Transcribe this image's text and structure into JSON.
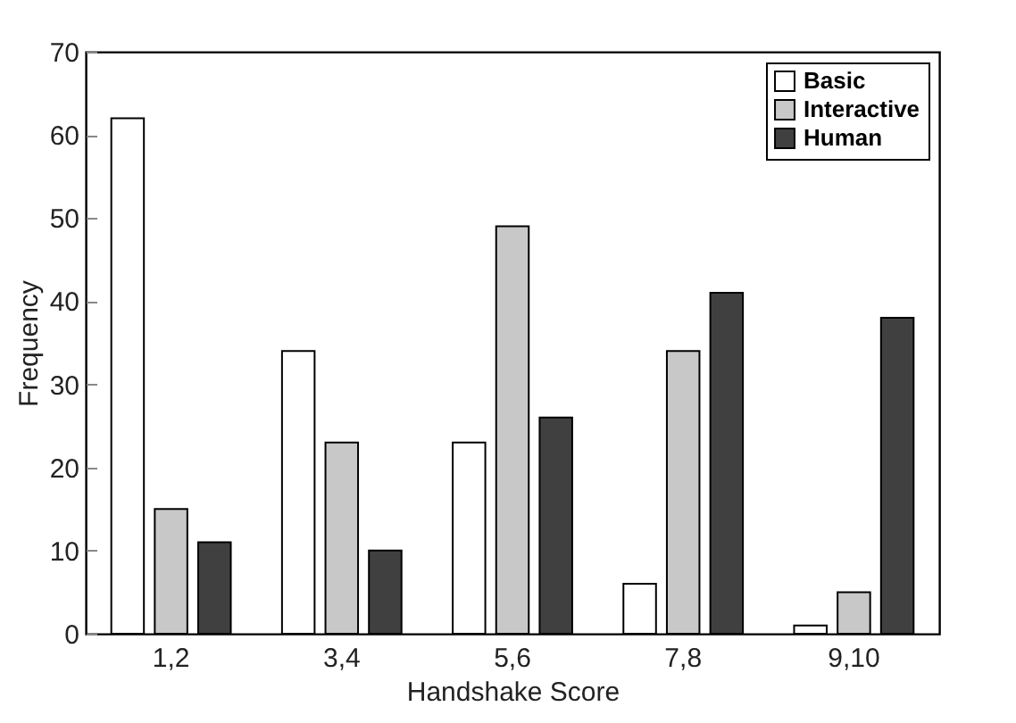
{
  "chart_data": {
    "type": "bar",
    "xlabel": "Handshake Score",
    "ylabel": "Frequency",
    "categories": [
      "1,2",
      "3,4",
      "5,6",
      "7,8",
      "9,10"
    ],
    "series": [
      {
        "name": "Basic",
        "color": "#ffffff",
        "values": [
          62,
          34,
          23,
          6,
          1
        ]
      },
      {
        "name": "Interactive",
        "color": "#c8c8c8",
        "values": [
          15,
          23,
          49,
          34,
          5
        ]
      },
      {
        "name": "Human",
        "color": "#404040",
        "values": [
          11,
          10,
          26,
          41,
          38
        ]
      }
    ],
    "ylim": [
      0,
      70
    ],
    "yticks": [
      0,
      10,
      20,
      30,
      40,
      50,
      60,
      70
    ],
    "grid": false,
    "legend": "top right"
  }
}
